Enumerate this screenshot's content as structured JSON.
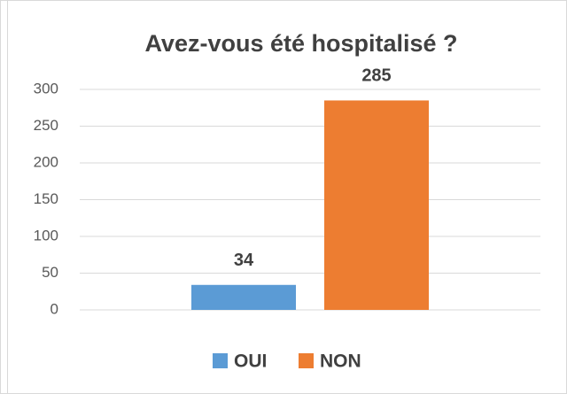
{
  "chart_data": {
    "type": "bar",
    "title": "Avez-vous été hospitalisé ?",
    "categories": [
      null
    ],
    "series": [
      {
        "name": "OUI",
        "color": "#5b9bd5",
        "values": [
          34
        ]
      },
      {
        "name": "NON",
        "color": "#ed7d31",
        "values": [
          285
        ]
      }
    ],
    "ylim": [
      0,
      300
    ],
    "yticks": [
      0,
      50,
      100,
      150,
      200,
      250,
      300
    ],
    "grid": true,
    "legend": "bottom"
  }
}
